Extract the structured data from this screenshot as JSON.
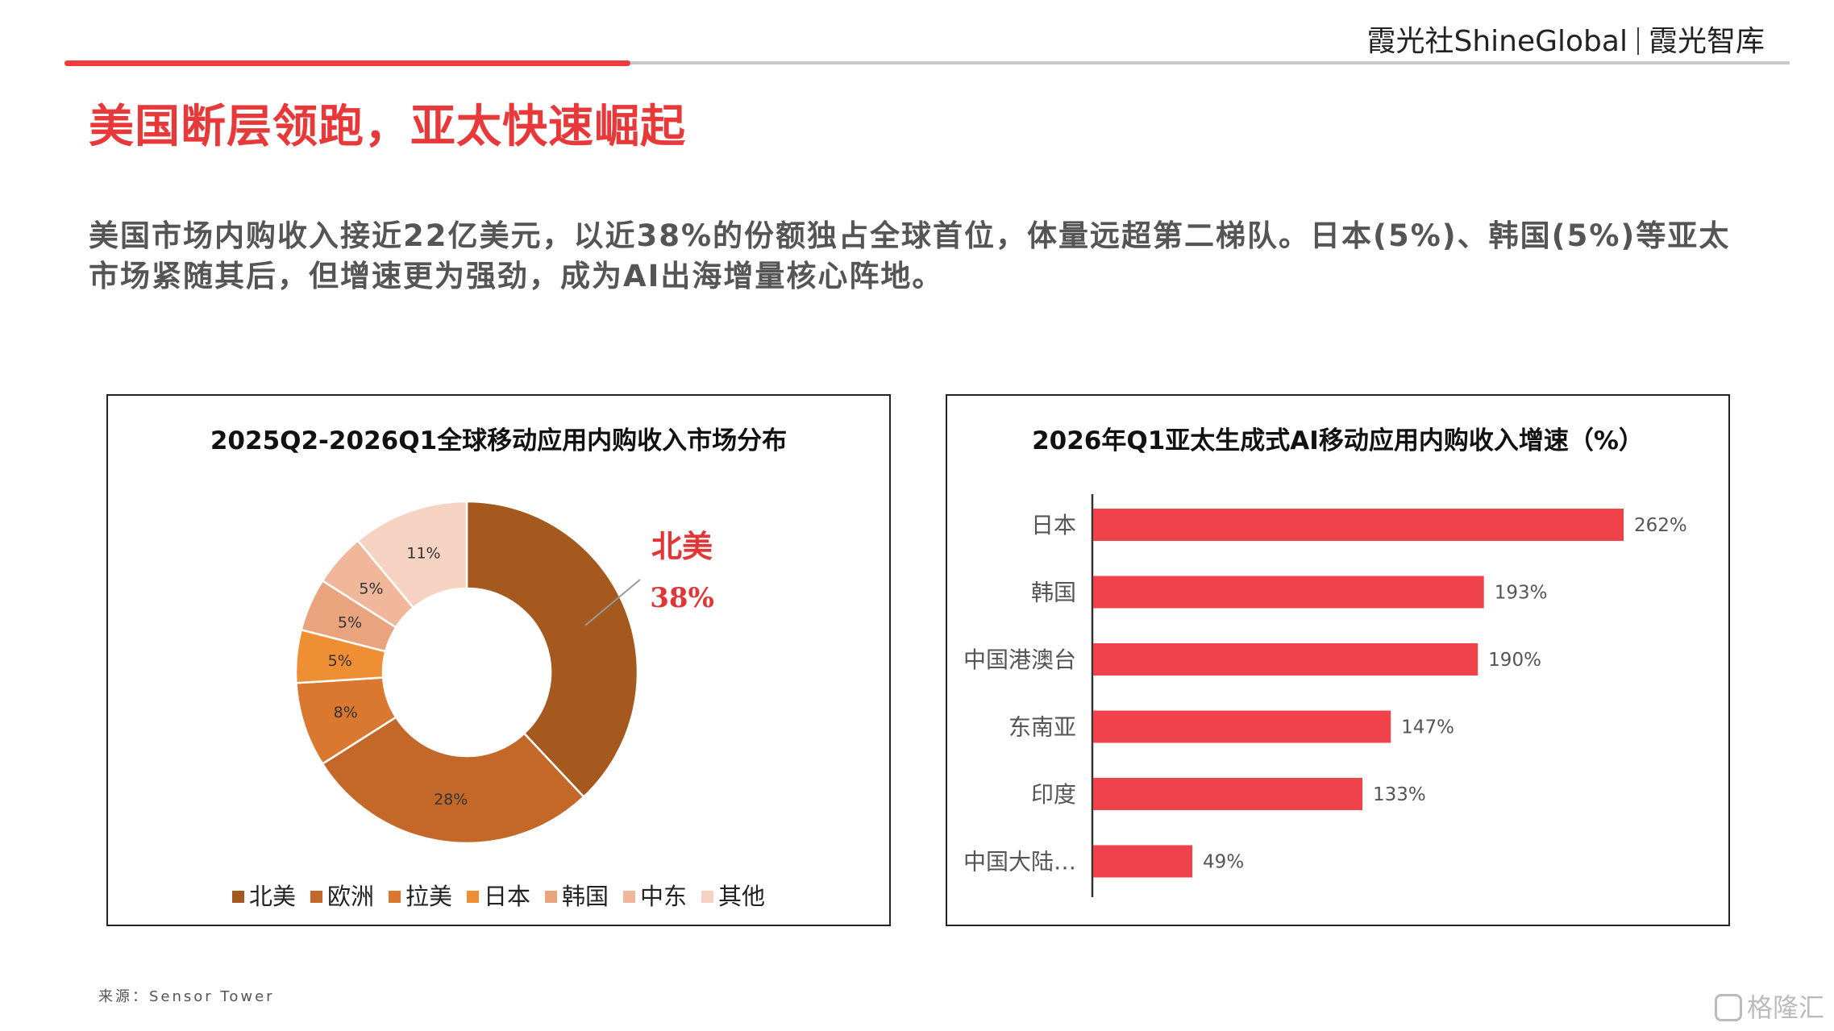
{
  "header": {
    "brand_left": "霞光社ShineGlobal",
    "brand_right": "霞光智库"
  },
  "page": {
    "title": "美国断层领跑，亚太快速崛起",
    "description": "美国市场内购收入接近22亿美元，以近38%的份额独占全球首位，体量远超第二梯队。日本(5%)、韩国(5%)等亚太市场紧随其后，但增速更为强劲，成为AI出海增量核心阵地。",
    "source": "来源：Sensor Tower"
  },
  "watermark": "格隆汇",
  "chart_data": [
    {
      "type": "pie",
      "title": "2025Q2-2026Q1全球移动应用内购收入市场分布",
      "categories": [
        "北美",
        "欧洲",
        "拉美",
        "日本",
        "韩国",
        "中东",
        "其他"
      ],
      "values": [
        38,
        28,
        8,
        5,
        5,
        5,
        11
      ],
      "labels": [
        "38%",
        "28%",
        "8%",
        "5%",
        "5%",
        "5%",
        "11%"
      ],
      "colors": [
        "#a5591f",
        "#c4682a",
        "#d9782e",
        "#ee8f34",
        "#e9a37d",
        "#f0b79a",
        "#f6d2c3"
      ],
      "callout": {
        "name": "北美",
        "value": "38%"
      },
      "legend": "bottom"
    },
    {
      "type": "bar",
      "orientation": "horizontal",
      "title": "2026年Q1亚太生成式AI移动应用内购收入增速（%）",
      "categories": [
        "日本",
        "韩国",
        "中国港澳台",
        "东南亚",
        "印度",
        "中国大陆…"
      ],
      "values": [
        262,
        193,
        190,
        147,
        133,
        49
      ],
      "labels": [
        "262%",
        "193%",
        "190%",
        "147%",
        "133%",
        "49%"
      ],
      "color": "#f0424b",
      "xlim": [
        0,
        262
      ]
    }
  ]
}
